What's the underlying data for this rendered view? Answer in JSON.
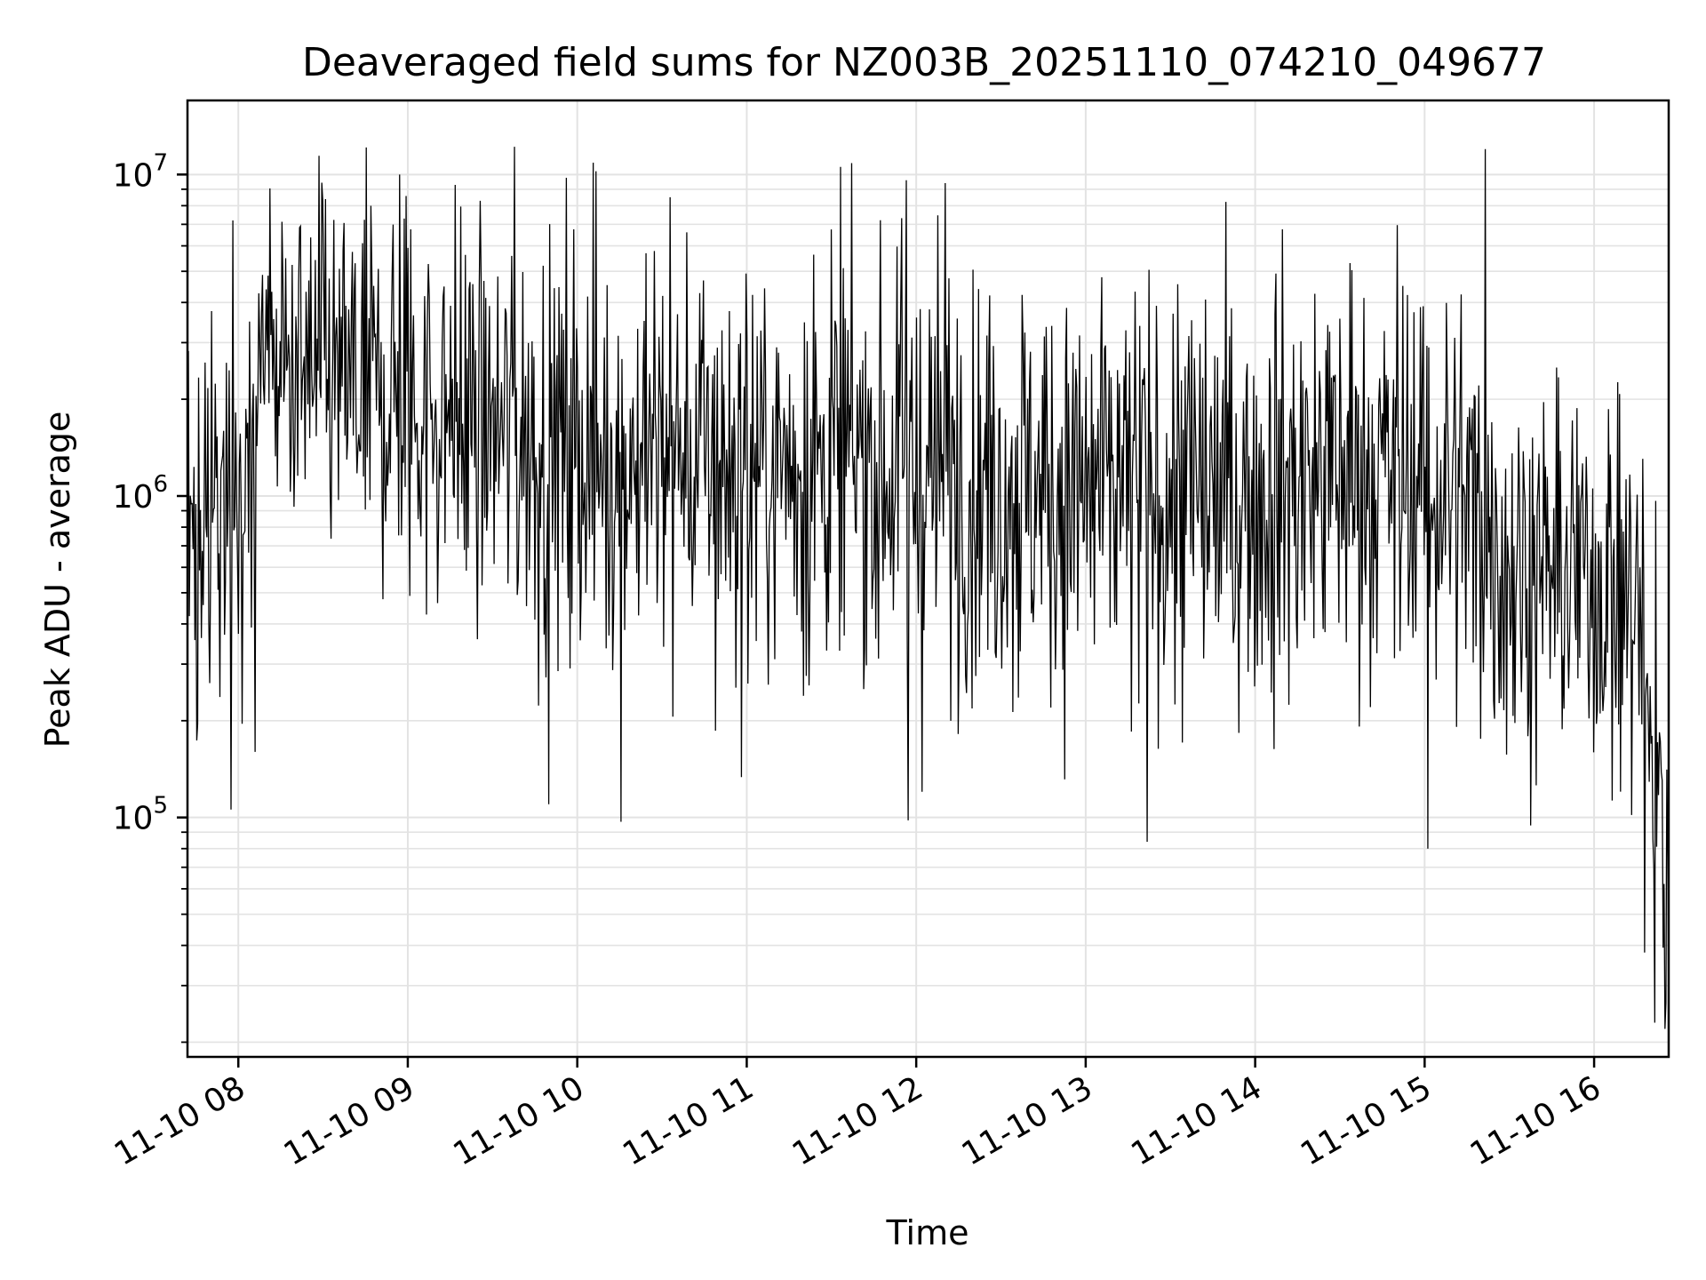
{
  "chart_data": {
    "type": "line",
    "title": "Deaveraged field sums for NZ003B_20251110_074210_049677",
    "xlabel": "Time",
    "ylabel": "Peak ADU - average",
    "yscale": "log",
    "ylim": [
      18000,
      17000000
    ],
    "xlim_hours": [
      7.7,
      16.44
    ],
    "grid": true,
    "line_color": "#000000",
    "grid_color": "#e3e3e3",
    "x_ticks": [
      {
        "hour": 8,
        "label": "11-10 08"
      },
      {
        "hour": 9,
        "label": "11-10 09"
      },
      {
        "hour": 10,
        "label": "11-10 10"
      },
      {
        "hour": 11,
        "label": "11-10 11"
      },
      {
        "hour": 12,
        "label": "11-10 12"
      },
      {
        "hour": 13,
        "label": "11-10 13"
      },
      {
        "hour": 14,
        "label": "11-10 14"
      },
      {
        "hour": 15,
        "label": "11-10 15"
      },
      {
        "hour": 16,
        "label": "11-10 16"
      }
    ],
    "y_ticks": [
      {
        "value": 100000,
        "base": "10",
        "exp": "5"
      },
      {
        "value": 1000000,
        "base": "10",
        "exp": "6"
      },
      {
        "value": 10000000,
        "base": "10",
        "exp": "7"
      }
    ],
    "envelope": {
      "hours": [
        7.7,
        8.0,
        8.2,
        8.5,
        9.0,
        9.5,
        10.0,
        10.5,
        11.0,
        11.5,
        12.0,
        12.5,
        13.0,
        13.5,
        14.0,
        14.5,
        15.0,
        15.2,
        15.5,
        16.0,
        16.25,
        16.35,
        16.44
      ],
      "center": [
        800000,
        1200000,
        2500000,
        2200000,
        2000000,
        1600000,
        1400000,
        1300000,
        1200000,
        1300000,
        1200000,
        1100000,
        1000000,
        1000000,
        1000000,
        1200000,
        1100000,
        1000000,
        600000,
        550000,
        450000,
        150000,
        60000
      ],
      "spread_decades": [
        0.45,
        0.45,
        0.35,
        0.4,
        0.42,
        0.45,
        0.45,
        0.45,
        0.45,
        0.45,
        0.45,
        0.45,
        0.45,
        0.45,
        0.45,
        0.45,
        0.45,
        0.42,
        0.4,
        0.38,
        0.4,
        0.45,
        0.45
      ]
    },
    "spikes": [
      {
        "hour": 7.97,
        "value": 7200000
      },
      {
        "hour": 8.1,
        "value": 160000
      },
      {
        "hour": 8.5,
        "value": 8300000
      },
      {
        "hour": 8.95,
        "value": 10000000
      },
      {
        "hour": 9.63,
        "value": 12200000
      },
      {
        "hour": 9.83,
        "value": 110000
      },
      {
        "hour": 10.26,
        "value": 97000
      },
      {
        "hour": 10.55,
        "value": 8500000
      },
      {
        "hour": 11.94,
        "value": 9600000
      },
      {
        "hour": 11.95,
        "value": 98000
      },
      {
        "hour": 12.17,
        "value": 9400000
      },
      {
        "hour": 13.36,
        "value": 84000
      },
      {
        "hour": 15.02,
        "value": 80000
      },
      {
        "hour": 15.36,
        "value": 12000000
      },
      {
        "hour": 16.3,
        "value": 38000
      },
      {
        "hour": 16.36,
        "value": 23000
      },
      {
        "hour": 16.42,
        "value": 22000
      }
    ],
    "n_samples": 1600
  }
}
